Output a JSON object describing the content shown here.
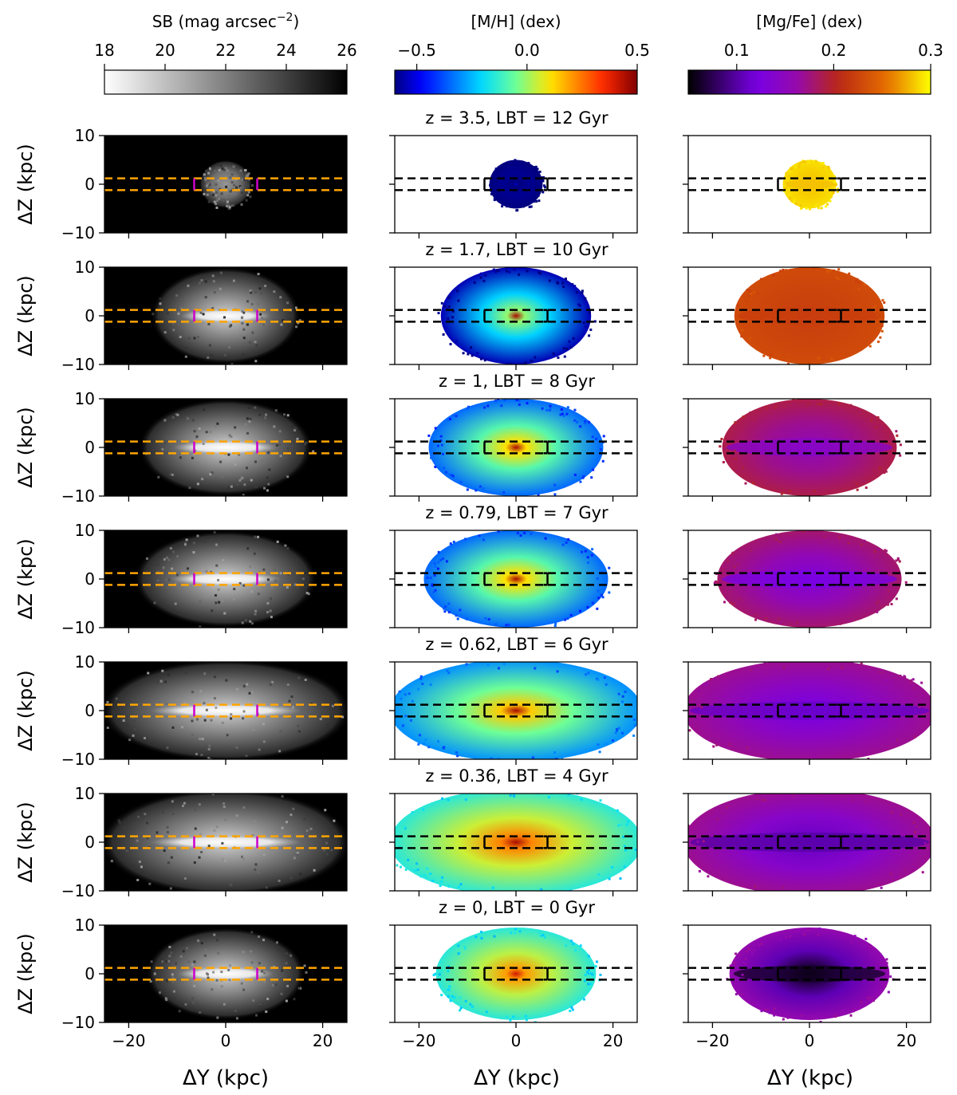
{
  "chart_data": {
    "type": "heatmap",
    "description_columns": [
      "surface brightness",
      "metallicity",
      "alpha abundance"
    ],
    "colorbars": [
      {
        "title": "SB (mag arcsec",
        "title_sup": "−2",
        "title_close": ")",
        "range": [
          18,
          26
        ],
        "ticks": [
          "18",
          "20",
          "22",
          "24",
          "26"
        ],
        "tick_values": [
          18,
          20,
          22,
          24,
          26
        ],
        "colormap": "gray_r"
      },
      {
        "title": "[M/H] (dex)",
        "title_sup": "",
        "title_close": "",
        "range": [
          -0.6,
          0.5
        ],
        "ticks": [
          "−0.5",
          "0.0",
          "0.5"
        ],
        "tick_values": [
          -0.5,
          0.0,
          0.5
        ],
        "colormap": "jet"
      },
      {
        "title": "[Mg/Fe] (dex)",
        "title_sup": "",
        "title_close": "",
        "range": [
          0.05,
          0.3
        ],
        "ticks": [
          "0.1",
          "0.2",
          "0.3"
        ],
        "tick_values": [
          0.1,
          0.2,
          0.3
        ],
        "colormap": "gnuplot"
      }
    ],
    "xlabel": "ΔY (kpc)",
    "ylabel": "ΔZ (kpc)",
    "xlim": [
      -25,
      25
    ],
    "ylim": [
      -10,
      10
    ],
    "xticks": [
      "−20",
      "0",
      "20"
    ],
    "xtick_values": [
      -20,
      0,
      20
    ],
    "yticks": [
      "10",
      "0",
      "−10"
    ],
    "ytick_values": [
      10,
      0,
      -10
    ],
    "slit_band_z": [
      -1.2,
      1.2
    ],
    "slit_box_y": [
      -6.5,
      6.5
    ],
    "rows": [
      {
        "title": "z = 3.5, LBT = 12 Gyr",
        "extent_y": 5.5,
        "extent_z": 5.0,
        "mh_center": -0.55,
        "mh_outer": -0.6,
        "mgfe_center": 0.28,
        "mgfe_outer": 0.29,
        "mgfe_plane": 0.28
      },
      {
        "title": "z = 1.7, LBT = 10 Gyr",
        "extent_y": 15.5,
        "extent_z": 10.0,
        "mh_center": 0.45,
        "mh_outer": -0.55,
        "mgfe_center": 0.22,
        "mgfe_outer": 0.23,
        "mgfe_plane": 0.22
      },
      {
        "title": "z = 1, LBT = 8 Gyr",
        "extent_y": 18.0,
        "extent_z": 10.0,
        "mh_center": 0.45,
        "mh_outer": -0.35,
        "mgfe_center": 0.15,
        "mgfe_outer": 0.19,
        "mgfe_plane": 0.14
      },
      {
        "title": "z = 0.79, LBT = 7 Gyr",
        "extent_y": 19.0,
        "extent_z": 10.0,
        "mh_center": 0.45,
        "mh_outer": -0.35,
        "mgfe_center": 0.13,
        "mgfe_outer": 0.18,
        "mgfe_plane": 0.12
      },
      {
        "title": "z = 0.62, LBT = 6 Gyr",
        "extent_y": 26.0,
        "extent_z": 10.5,
        "mh_center": 0.45,
        "mh_outer": -0.3,
        "mgfe_center": 0.12,
        "mgfe_outer": 0.17,
        "mgfe_plane": 0.11
      },
      {
        "title": "z = 0.36, LBT = 4 Gyr",
        "extent_y": 26.0,
        "extent_z": 11.0,
        "mh_center": 0.45,
        "mh_outer": -0.15,
        "mgfe_center": 0.11,
        "mgfe_outer": 0.17,
        "mgfe_plane": 0.1
      },
      {
        "title": "z = 0, LBT = 0 Gyr",
        "extent_y": 16.5,
        "extent_z": 9.5,
        "mh_center": 0.4,
        "mh_outer": -0.15,
        "mgfe_center": 0.05,
        "mgfe_outer": 0.16,
        "mgfe_plane": 0.06
      }
    ]
  }
}
